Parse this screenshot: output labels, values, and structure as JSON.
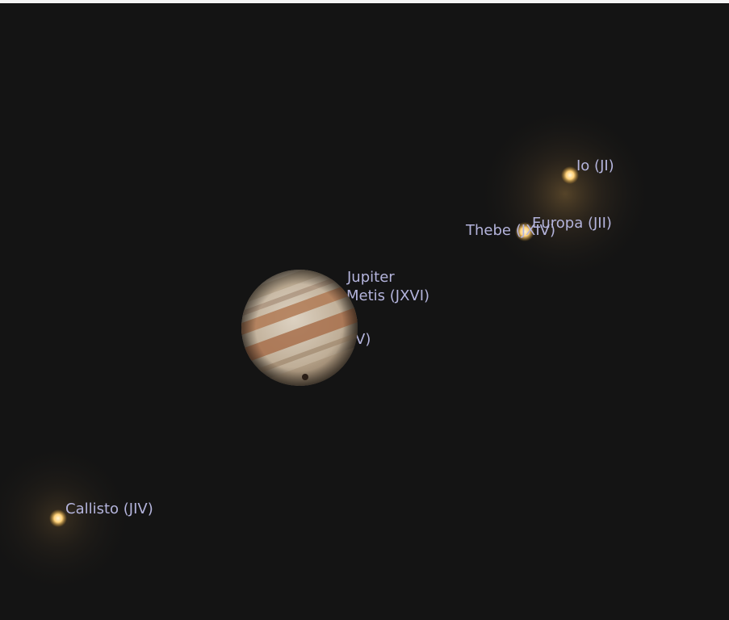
{
  "objects": [
    {
      "label": "Io (JI)"
    },
    {
      "label": "Europa (JII)"
    },
    {
      "label": "Thebe (JXIV)"
    },
    {
      "label": "Jupiter"
    },
    {
      "label": "Metis (JXVI)"
    },
    {
      "label": "V)"
    },
    {
      "label": "Callisto (JIV)"
    }
  ]
}
